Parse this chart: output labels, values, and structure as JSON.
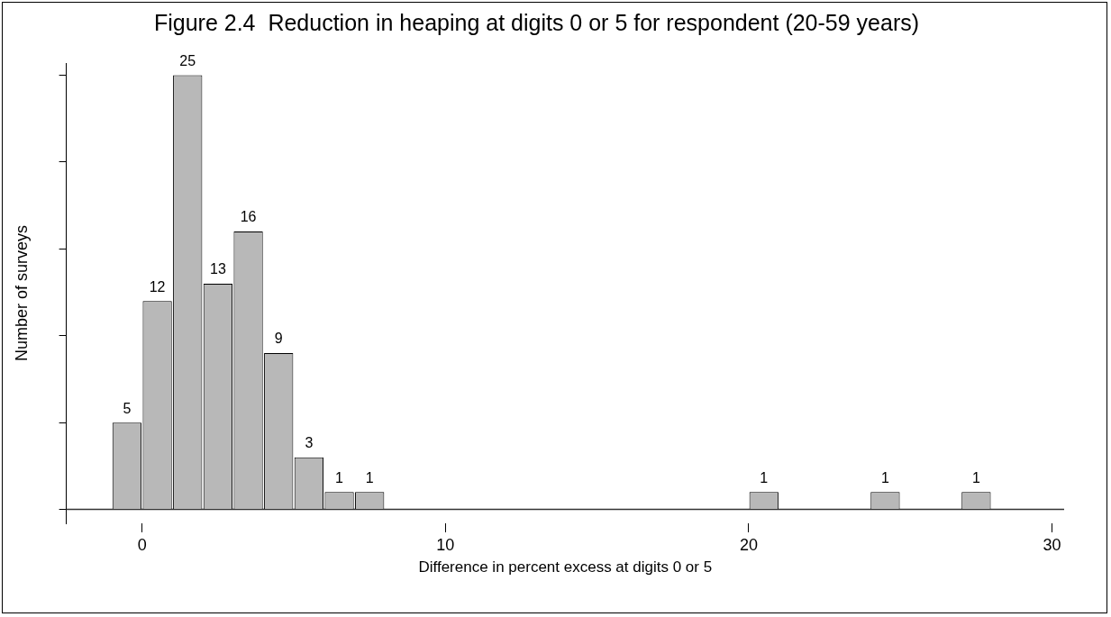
{
  "chart_data": {
    "type": "bar",
    "title": "Figure 2.4  Reduction in heaping at digits 0 or 5 for respondent (20-59 years)",
    "xlabel": "Difference in percent excess at digits 0 or 5",
    "ylabel": "Number of surveys",
    "x": [
      -0.5,
      0.5,
      1.5,
      2.5,
      3.5,
      4.5,
      5.5,
      6.5,
      7.5,
      20.5,
      24.5,
      27.5
    ],
    "values": [
      5,
      12,
      25,
      13,
      16,
      9,
      3,
      1,
      1,
      1,
      1,
      1
    ],
    "data_labels": true,
    "color": "#b8b8b8",
    "xlim": [
      -2.5,
      30.4
    ],
    "xticks": [
      0,
      10,
      20,
      30
    ],
    "ylim": [
      -0.8,
      25.7
    ],
    "yticks": [
      {
        "value": 0,
        "label": null
      },
      {
        "value": 5,
        "label": null
      },
      {
        "value": 10,
        "label": null
      },
      {
        "value": 15,
        "label": null
      },
      {
        "value": 20,
        "label": null
      },
      {
        "value": 25,
        "label": null
      }
    ],
    "tick_labels": "x"
  }
}
